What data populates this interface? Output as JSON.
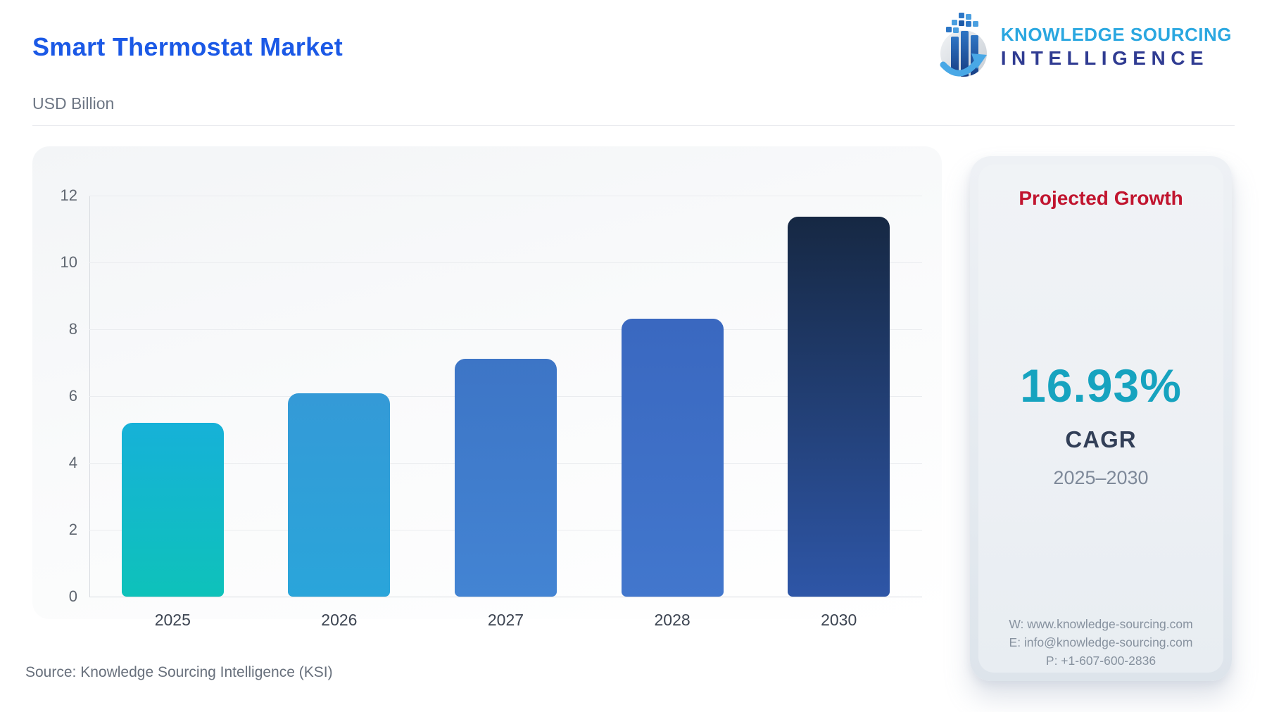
{
  "header": {
    "title": "Smart Thermostat Market",
    "subtitle": "USD Billion"
  },
  "logo": {
    "line1": "KNOWLEDGE SOURCING",
    "line2": "INTELLIGENCE",
    "line1_color": "#2aa7e0",
    "line2_color": "#303c92"
  },
  "chart_data": {
    "type": "bar",
    "title": "Smart Thermostat Market",
    "ylabel": "USD Billion",
    "xlabel": "",
    "categories": [
      "2025",
      "2026",
      "2027",
      "2028",
      "2030"
    ],
    "values": [
      5.2,
      6.08,
      7.11,
      8.31,
      11.37
    ],
    "ylim": [
      0,
      12
    ],
    "yticks": [
      0,
      2,
      4,
      6,
      8,
      10,
      12
    ],
    "grid": true,
    "legend": "none",
    "bar_colors": [
      [
        "#16b1d8",
        "#0ec2ba"
      ],
      [
        "#349ad7",
        "#2aa5da"
      ],
      [
        "#3d75c6",
        "#4384d3"
      ],
      [
        "#3a68c0",
        "#4277cd"
      ],
      [
        "#162843",
        "#2e56a7"
      ]
    ]
  },
  "growth_panel": {
    "title": "Projected Growth",
    "title_color": "#c1152f",
    "value": "16.93%",
    "value_color": "#16a3bf",
    "label": "CAGR",
    "period": "2025–2030",
    "contact": {
      "website": "W: www.knowledge-sourcing.com",
      "email": "E: info@knowledge-sourcing.com",
      "phone": "P: +1-607-600-2836"
    }
  },
  "source": "Source: Knowledge Sourcing Intelligence (KSI)"
}
